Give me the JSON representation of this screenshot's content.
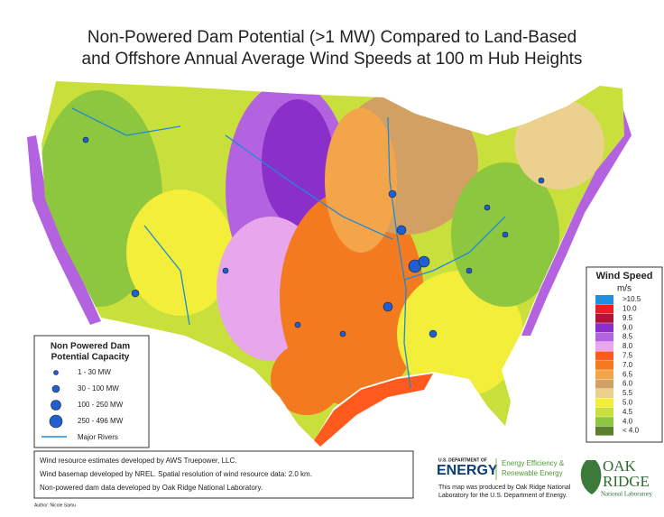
{
  "title": [
    "Non-Powered Dam Potential (>1 MW) Compared to Land-Based",
    "and Offshore Annual Average Wind Speeds at 100 m Hub Heights"
  ],
  "wind_legend": {
    "title": "Wind Speed",
    "unit": "m/s",
    "items": [
      {
        "label": ">10.5",
        "color": "#1f8fe0"
      },
      {
        "label": "10.0",
        "color": "#ee1c25"
      },
      {
        "label": "9.5",
        "color": "#b5123a"
      },
      {
        "label": "9.0",
        "color": "#8a2fc9"
      },
      {
        "label": "8.5",
        "color": "#b463e0"
      },
      {
        "label": "8.0",
        "color": "#e8a6ec"
      },
      {
        "label": "7.5",
        "color": "#ff5a1e"
      },
      {
        "label": "7.0",
        "color": "#f47a20"
      },
      {
        "label": "6.5",
        "color": "#f4a54a"
      },
      {
        "label": "6.0",
        "color": "#d2a063"
      },
      {
        "label": "5.5",
        "color": "#ecd08e"
      },
      {
        "label": "5.0",
        "color": "#f2ee3a"
      },
      {
        "label": "4.5",
        "color": "#c9df3c"
      },
      {
        "label": "4.0",
        "color": "#8dc63f"
      },
      {
        "label": "< 4.0",
        "color": "#5b7f2a"
      }
    ]
  },
  "dam_legend": {
    "title": [
      "Non Powered Dam",
      "Potential Capacity"
    ],
    "items": [
      "1 - 30 MW",
      "30 - 100 MW",
      "100 - 250 MW",
      "250 - 496 MW"
    ],
    "rivers": "Major Rivers"
  },
  "credits": [
    "Wind resource estimates developed by AWS Truepower, LLC.",
    "Wind basemap developed by NREL. Spatial resolution of wind resource data: 2.0 km.",
    "Non-powered dam data developed by Oak Ridge National Laboratory."
  ],
  "author": "Author: Nicole Samu",
  "doe": {
    "department": "U.S. DEPARTMENT OF",
    "name": "ENERGY",
    "office": [
      "Energy Efficiency &",
      "Renewable Energy"
    ]
  },
  "note": [
    "This map was produced by Oak Ridge National",
    "Laboratory for the U.S. Department of Energy."
  ],
  "ornl": {
    "name": [
      "OAK",
      "RIDGE"
    ],
    "sub": "National Laboratory"
  }
}
